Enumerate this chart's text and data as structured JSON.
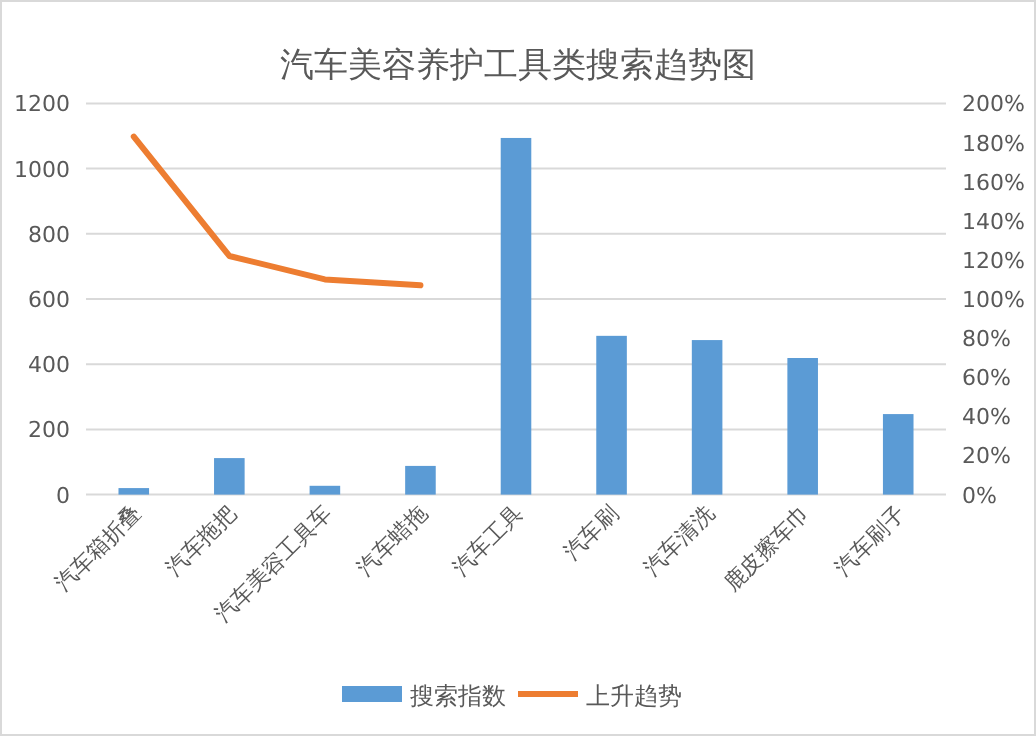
{
  "chart_data": {
    "type": "bar",
    "title": "汽车美容养护工具类搜索趋势图",
    "categories": [
      "汽车箱折叠",
      "汽车拖把",
      "汽车美容工具车",
      "汽车蜡拖",
      "汽车工具",
      "汽车刷",
      "汽车清洗",
      "鹿皮擦车巾",
      "汽车刷子"
    ],
    "series": [
      {
        "name": "搜索指数",
        "color": "#5b9bd5",
        "values": [
          20,
          112,
          27,
          88,
          1094,
          487,
          474,
          419,
          247
        ]
      },
      {
        "name": "上升趋势",
        "type": "line",
        "axis": "y2",
        "color": "#ed7d31",
        "values": [
          183,
          122,
          110,
          107,
          null,
          null,
          null,
          null,
          null
        ]
      }
    ],
    "ylim": [
      0,
      1200
    ],
    "yticks": [
      0,
      200,
      400,
      600,
      800,
      1000,
      1200
    ],
    "y2lim": [
      0,
      200
    ],
    "y2ticks": [
      {
        "value": 0,
        "label": "0%"
      },
      {
        "value": 20,
        "label": "20%"
      },
      {
        "value": 40,
        "label": "40%"
      },
      {
        "value": 60,
        "label": "60%"
      },
      {
        "value": 80,
        "label": "80%"
      },
      {
        "value": 100,
        "label": "100%"
      },
      {
        "value": 120,
        "label": "120%"
      },
      {
        "value": 140,
        "label": "140%"
      },
      {
        "value": 160,
        "label": "160%"
      },
      {
        "value": 180,
        "label": "180%"
      },
      {
        "value": 200,
        "label": "200%"
      }
    ],
    "grid": "y",
    "legend": "bottom"
  }
}
